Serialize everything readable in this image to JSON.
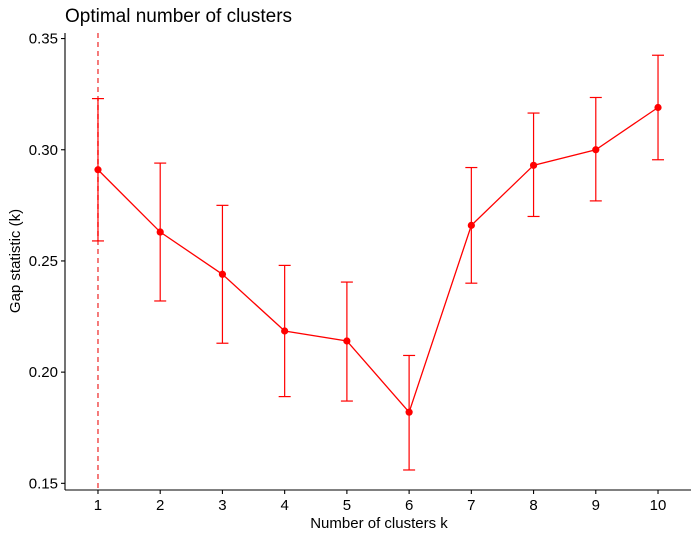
{
  "chart_data": {
    "type": "line",
    "title": "Optimal number of clusters",
    "xlabel": "Number of clusters k",
    "ylabel": "Gap statistic (k)",
    "x": [
      1,
      2,
      3,
      4,
      5,
      6,
      7,
      8,
      9,
      10
    ],
    "x_tick_labels": [
      "1",
      "2",
      "3",
      "4",
      "5",
      "6",
      "7",
      "8",
      "9",
      "10"
    ],
    "y_ticks": [
      0.15,
      0.2,
      0.25,
      0.3,
      0.35
    ],
    "y_tick_labels": [
      "0.15",
      "0.20",
      "0.25",
      "0.30",
      "0.35"
    ],
    "xlim": [
      0.47,
      10.53
    ],
    "ylim": [
      0.147,
      0.3525
    ],
    "grid": false,
    "series": [
      {
        "values": [
          0.291,
          0.263,
          0.244,
          0.2185,
          0.214,
          0.182,
          0.266,
          0.293,
          0.3,
          0.319
        ],
        "lower": [
          0.259,
          0.232,
          0.213,
          0.189,
          0.187,
          0.156,
          0.24,
          0.27,
          0.277,
          0.2955
        ],
        "upper": [
          0.323,
          0.294,
          0.275,
          0.248,
          0.2405,
          0.2075,
          0.292,
          0.3165,
          0.3235,
          0.3425
        ]
      }
    ],
    "optimal_k": 1,
    "colors": {
      "series": "#ff0000",
      "vline": "#f25a5a",
      "axis": "#000000"
    }
  }
}
